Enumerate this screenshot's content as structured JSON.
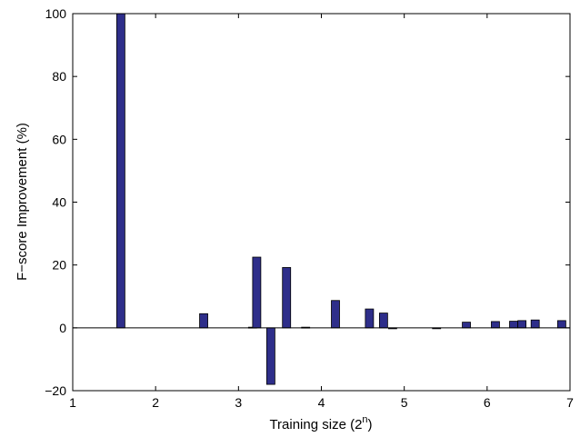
{
  "chart_data": {
    "type": "bar",
    "xlabel": "Training size (2",
    "xlabel_sup": "n",
    "xlabel_end": ")",
    "ylabel": "F−score Improvement (%)",
    "xlim": [
      1,
      7
    ],
    "ylim": [
      -20,
      100
    ],
    "xticks": [
      1,
      2,
      3,
      4,
      5,
      6,
      7
    ],
    "yticks": [
      -20,
      0,
      20,
      40,
      60,
      80,
      100
    ],
    "ytick_labels": [
      "−20",
      "0",
      "20",
      "40",
      "60",
      "80",
      "100"
    ],
    "grid": false,
    "bar_color": "#2E2E8A",
    "x": [
      1.58,
      2.58,
      3.17,
      3.22,
      3.39,
      3.58,
      3.81,
      4.17,
      4.58,
      4.75,
      4.86,
      5.39,
      5.75,
      6.1,
      6.32,
      6.42,
      6.58,
      6.9
    ],
    "values": [
      100,
      4.5,
      0.2,
      22.5,
      -18,
      19.2,
      0.2,
      8.7,
      6,
      4.7,
      -0.3,
      -0.2,
      1.8,
      2,
      2.1,
      2.3,
      2.5,
      2.3
    ]
  }
}
